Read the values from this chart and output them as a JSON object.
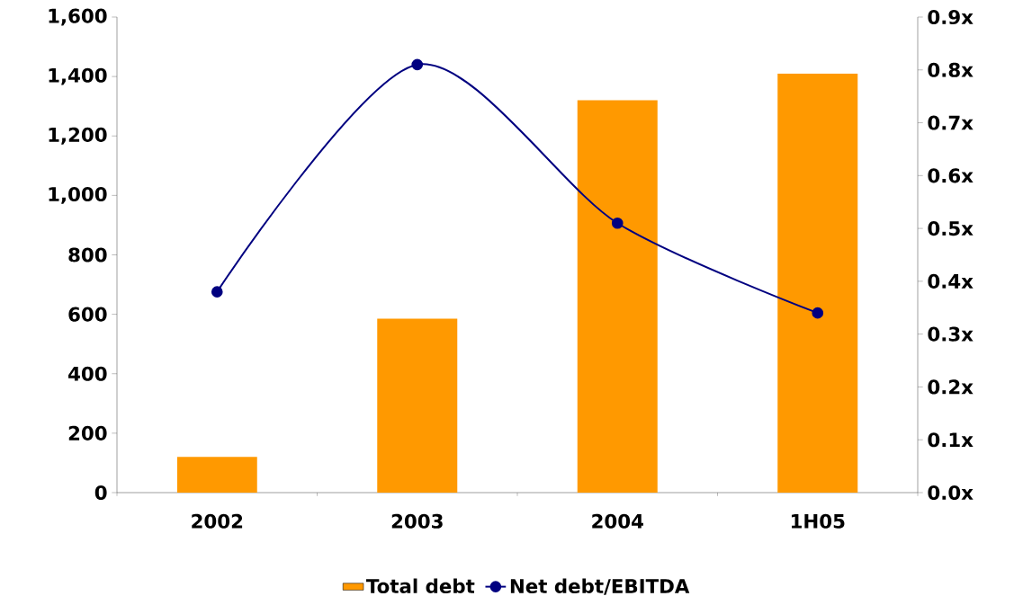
{
  "chart_data": {
    "type": "bar",
    "categories": [
      "2002",
      "2003",
      "2004",
      "1H05"
    ],
    "series": [
      {
        "name": "Total debt",
        "color": "#ff9900",
        "values": [
          120,
          585,
          1320,
          1410
        ]
      },
      {
        "name": "Net debt/EBITDA",
        "type": "line",
        "axis": "y2",
        "color": "#000080",
        "values": [
          0.38,
          0.81,
          0.51,
          0.34
        ]
      }
    ],
    "ylim": [
      0,
      1600
    ],
    "yticks": [
      0,
      200,
      400,
      600,
      800,
      {
        "value": 1000,
        "label": "1,000"
      },
      {
        "value": 1200,
        "label": "1,200"
      },
      {
        "value": 1400,
        "label": "1,400"
      },
      {
        "value": 1600,
        "label": "1,600"
      }
    ],
    "y2lim": [
      0,
      0.9
    ],
    "y2ticks": [
      {
        "value": 0,
        "label": "0.0x"
      },
      {
        "value": 0.1,
        "label": "0.1x"
      },
      {
        "value": 0.2,
        "label": "0.2x"
      },
      {
        "value": 0.3,
        "label": "0.3x"
      },
      {
        "value": 0.4,
        "label": "0.4x"
      },
      {
        "value": 0.5,
        "label": "0.5x"
      },
      {
        "value": 0.6,
        "label": "0.6x"
      },
      {
        "value": 0.7,
        "label": "0.7x"
      },
      {
        "value": 0.8,
        "label": "0.8x"
      },
      {
        "value": 0.9,
        "label": "0.9x"
      }
    ],
    "marker": "circle",
    "line_style": "solid",
    "legend": "bottom"
  }
}
